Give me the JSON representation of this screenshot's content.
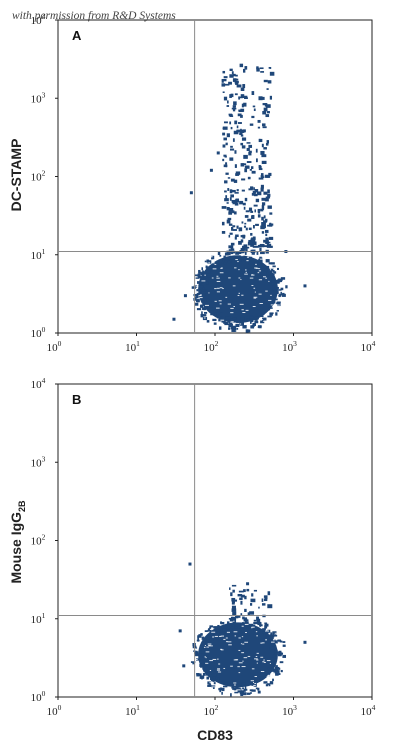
{
  "watermark": "with permission from R&D Systems",
  "colors": {
    "density": "#1f4779",
    "gate": "#8a8a8a",
    "axis": "#222222"
  },
  "chart_data": [
    {
      "type": "scatter",
      "panel": "A",
      "xlabel": "",
      "ylabel": "DC-STAMP",
      "x_scale": "log",
      "y_scale": "log",
      "xlim": [
        1,
        10000
      ],
      "ylim": [
        1,
        10000
      ],
      "x_ticks": [
        {
          "base": "10",
          "exp": "0"
        },
        {
          "base": "10",
          "exp": "1"
        },
        {
          "base": "10",
          "exp": "2"
        },
        {
          "base": "10",
          "exp": "3"
        },
        {
          "base": "10",
          "exp": "4"
        }
      ],
      "y_ticks": [
        {
          "base": "10",
          "exp": "0"
        },
        {
          "base": "10",
          "exp": "1"
        },
        {
          "base": "10",
          "exp": "2"
        },
        {
          "base": "10",
          "exp": "3"
        },
        {
          "base": "10",
          "exp": "4"
        }
      ],
      "gates": {
        "x": 55,
        "y": 11
      },
      "populations": [
        {
          "x_range": [
            55,
            700
          ],
          "y_range": [
            1.2,
            11
          ],
          "density": "high"
        },
        {
          "x_range": [
            120,
            500
          ],
          "y_range": [
            11,
            2800
          ],
          "density": "sparse"
        }
      ],
      "points": [
        [
          50,
          62
        ],
        [
          42,
          3
        ],
        [
          110,
          200
        ],
        [
          90,
          120
        ],
        [
          30,
          1.5
        ],
        [
          1400,
          4
        ],
        [
          800,
          11
        ]
      ]
    },
    {
      "type": "scatter",
      "panel": "B",
      "xlabel": "CD83",
      "ylabel_parts": {
        "main": "Mouse IgG",
        "sub": "2B"
      },
      "x_scale": "log",
      "y_scale": "log",
      "xlim": [
        1,
        10000
      ],
      "ylim": [
        1,
        10000
      ],
      "x_ticks": [
        {
          "base": "10",
          "exp": "0"
        },
        {
          "base": "10",
          "exp": "1"
        },
        {
          "base": "10",
          "exp": "2"
        },
        {
          "base": "10",
          "exp": "3"
        },
        {
          "base": "10",
          "exp": "4"
        }
      ],
      "y_ticks": [
        {
          "base": "10",
          "exp": "0"
        },
        {
          "base": "10",
          "exp": "1"
        },
        {
          "base": "10",
          "exp": "2"
        },
        {
          "base": "10",
          "exp": "3"
        },
        {
          "base": "10",
          "exp": "4"
        }
      ],
      "gates": {
        "x": 55,
        "y": 11
      },
      "populations": [
        {
          "x_range": [
            55,
            700
          ],
          "y_range": [
            1.2,
            10
          ],
          "density": "high"
        },
        {
          "x_range": [
            150,
            500
          ],
          "y_range": [
            10,
            28
          ],
          "density": "sparse"
        }
      ],
      "points": [
        [
          48,
          50
        ],
        [
          36,
          7
        ],
        [
          40,
          2.5
        ],
        [
          1400,
          5
        ],
        [
          260,
          28
        ]
      ]
    }
  ]
}
